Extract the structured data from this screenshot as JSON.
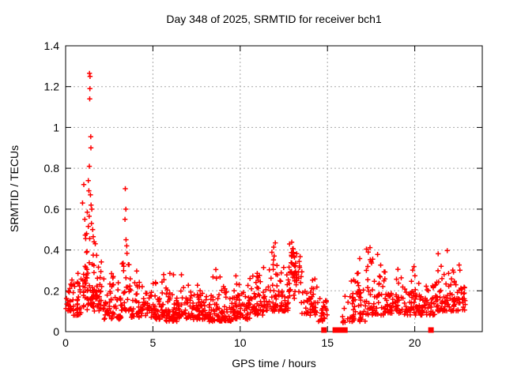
{
  "title": "Day 348 of 2025, SRMTID for receiver bch1",
  "chart_data": {
    "type": "scatter",
    "title": "Day 348 of 2025, SRMTID for receiver bch1",
    "xlabel": "GPS time / hours",
    "ylabel": "SRMTID / TECUs",
    "xlim": [
      0,
      23.87
    ],
    "ylim": [
      0,
      1.4
    ],
    "grid": true,
    "legend": "none",
    "marker": {
      "shape": "plus",
      "color": "#ff0000",
      "size": 6.5
    },
    "gap_marker": {
      "shape": "filled-square",
      "color": "#ff0000",
      "size": 7
    },
    "x_ticks": [
      {
        "v": 0,
        "label": "0"
      },
      {
        "v": 5,
        "label": "5"
      },
      {
        "v": 10,
        "label": "10"
      },
      {
        "v": 15,
        "label": "15"
      },
      {
        "v": 20,
        "label": "20"
      }
    ],
    "y_ticks": [
      {
        "v": 0,
        "label": "0"
      },
      {
        "v": 0.2,
        "label": "0.2"
      },
      {
        "v": 0.4,
        "label": "0.4"
      },
      {
        "v": 0.6,
        "label": "0.6"
      },
      {
        "v": 0.8,
        "label": "0.8"
      },
      {
        "v": 1.0,
        "label": "1"
      },
      {
        "v": 1.2,
        "label": "1.2"
      },
      {
        "v": 1.4,
        "label": "1.4"
      }
    ],
    "outlier_points": [
      [
        1.37,
        1.265
      ],
      [
        1.4,
        1.25
      ],
      [
        1.39,
        1.19
      ],
      [
        1.38,
        1.14
      ],
      [
        1.44,
        0.955
      ],
      [
        1.45,
        0.9
      ],
      [
        1.36,
        0.81
      ],
      [
        1.3,
        0.74
      ],
      [
        1.04,
        0.72
      ],
      [
        1.33,
        0.69
      ],
      [
        1.42,
        0.67
      ],
      [
        0.97,
        0.63
      ],
      [
        1.46,
        0.62
      ],
      [
        1.5,
        0.6
      ],
      [
        1.24,
        0.585
      ],
      [
        1.35,
        0.565
      ],
      [
        1.1,
        0.55
      ],
      [
        1.48,
        0.53
      ],
      [
        1.3,
        0.515
      ],
      [
        1.55,
        0.5
      ],
      [
        1.2,
        0.48
      ],
      [
        1.58,
        0.465
      ],
      [
        1.15,
        0.455
      ],
      [
        1.63,
        0.44
      ],
      [
        1.7,
        0.43
      ],
      [
        3.42,
        0.7
      ],
      [
        3.45,
        0.6
      ],
      [
        3.4,
        0.55
      ],
      [
        3.46,
        0.45
      ],
      [
        3.5,
        0.42
      ]
    ],
    "zero_marker_hours": [
      14.8,
      15.45,
      15.75,
      16.0,
      20.93
    ],
    "dense_bands": [
      {
        "x0": 0.02,
        "x1": 0.35,
        "n": 22,
        "lo": 0.1,
        "hi": 0.32,
        "dist": "low"
      },
      {
        "x0": 0.35,
        "x1": 0.95,
        "n": 32,
        "lo": 0.08,
        "hi": 0.3,
        "dist": "low"
      },
      {
        "x0": 0.95,
        "x1": 1.25,
        "n": 26,
        "lo": 0.1,
        "hi": 0.55,
        "dist": "low"
      },
      {
        "x0": 1.25,
        "x1": 1.65,
        "n": 32,
        "lo": 0.12,
        "hi": 0.5,
        "dist": "low"
      },
      {
        "x0": 1.65,
        "x1": 2.2,
        "n": 36,
        "lo": 0.1,
        "hi": 0.42,
        "dist": "low"
      },
      {
        "x0": 2.2,
        "x1": 3.2,
        "n": 60,
        "lo": 0.06,
        "hi": 0.3,
        "dist": "low"
      },
      {
        "x0": 3.2,
        "x1": 3.7,
        "n": 30,
        "lo": 0.1,
        "hi": 0.4,
        "dist": "low"
      },
      {
        "x0": 3.7,
        "x1": 4.6,
        "n": 48,
        "lo": 0.07,
        "hi": 0.33,
        "dist": "low"
      },
      {
        "x0": 4.6,
        "x1": 5.6,
        "n": 60,
        "lo": 0.06,
        "hi": 0.3,
        "dist": "low"
      },
      {
        "x0": 5.6,
        "x1": 6.8,
        "n": 75,
        "lo": 0.05,
        "hi": 0.33,
        "dist": "low"
      },
      {
        "x0": 6.8,
        "x1": 8.2,
        "n": 90,
        "lo": 0.06,
        "hi": 0.3,
        "dist": "low"
      },
      {
        "x0": 8.2,
        "x1": 9.6,
        "n": 90,
        "lo": 0.05,
        "hi": 0.31,
        "dist": "low"
      },
      {
        "x0": 9.6,
        "x1": 10.6,
        "n": 65,
        "lo": 0.06,
        "hi": 0.34,
        "dist": "low"
      },
      {
        "x0": 10.6,
        "x1": 11.3,
        "n": 42,
        "lo": 0.08,
        "hi": 0.36,
        "dist": "low"
      },
      {
        "x0": 11.3,
        "x1": 12.1,
        "n": 48,
        "lo": 0.1,
        "hi": 0.47,
        "dist": "low"
      },
      {
        "x0": 12.1,
        "x1": 12.8,
        "n": 46,
        "lo": 0.1,
        "hi": 0.42,
        "dist": "low"
      },
      {
        "x0": 12.8,
        "x1": 13.5,
        "n": 55,
        "lo": 0.12,
        "hi": 0.47,
        "dist": "mid"
      },
      {
        "x0": 13.5,
        "x1": 14.4,
        "n": 46,
        "lo": 0.08,
        "hi": 0.35,
        "dist": "low"
      },
      {
        "x0": 14.4,
        "x1": 15.05,
        "n": 24,
        "lo": 0.05,
        "hi": 0.25,
        "dist": "low"
      },
      {
        "x0": 15.75,
        "x1": 16.35,
        "n": 12,
        "lo": 0.04,
        "hi": 0.22,
        "dist": "low"
      },
      {
        "x0": 16.35,
        "x1": 17.2,
        "n": 52,
        "lo": 0.05,
        "hi": 0.43,
        "dist": "low"
      },
      {
        "x0": 17.2,
        "x1": 18.3,
        "n": 62,
        "lo": 0.08,
        "hi": 0.45,
        "dist": "low"
      },
      {
        "x0": 18.3,
        "x1": 19.3,
        "n": 56,
        "lo": 0.09,
        "hi": 0.37,
        "dist": "low"
      },
      {
        "x0": 19.3,
        "x1": 20.3,
        "n": 52,
        "lo": 0.08,
        "hi": 0.36,
        "dist": "low"
      },
      {
        "x0": 20.3,
        "x1": 21.2,
        "n": 46,
        "lo": 0.08,
        "hi": 0.3,
        "dist": "low"
      },
      {
        "x0": 21.2,
        "x1": 22.0,
        "n": 46,
        "lo": 0.1,
        "hi": 0.42,
        "dist": "low"
      },
      {
        "x0": 22.0,
        "x1": 22.9,
        "n": 52,
        "lo": 0.1,
        "hi": 0.36,
        "dist": "low"
      }
    ],
    "seed": 7
  },
  "colors": {
    "marker": "#ff0000",
    "grid": "#a8a8a8",
    "axis": "#000000",
    "text": "#000000",
    "background": "#ffffff"
  }
}
